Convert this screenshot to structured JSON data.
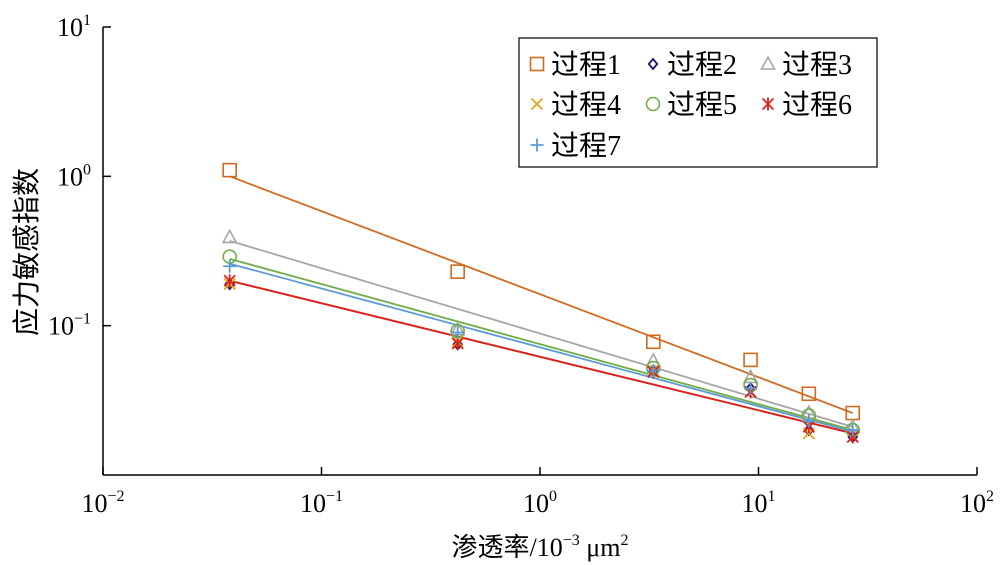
{
  "chart_data": {
    "type": "scatter",
    "xlabel": "渗透率/10",
    "xlabel_exp": "−3",
    "xlabel_unit": " μm",
    "xlabel_unit_exp": "2",
    "ylabel": "应力敏感指数",
    "x_scale": "log",
    "y_scale": "log",
    "xlim": [
      0.01,
      100
    ],
    "ylim": [
      0.01,
      10
    ],
    "x_ticks": [
      {
        "base": "10",
        "exp": "−2",
        "value": 0.01
      },
      {
        "base": "10",
        "exp": "−1",
        "value": 0.1
      },
      {
        "base": "10",
        "exp": "0",
        "value": 1
      },
      {
        "base": "10",
        "exp": "1",
        "value": 10
      },
      {
        "base": "10",
        "exp": "2",
        "value": 100
      }
    ],
    "y_ticks": [
      {
        "base": "10",
        "exp": "−1",
        "value": 0.1
      },
      {
        "base": "10",
        "exp": "0",
        "value": 1
      },
      {
        "base": "10",
        "exp": "1",
        "value": 10
      }
    ],
    "grid": false,
    "legend_position": "top-right",
    "x": [
      0.038,
      0.42,
      3.3,
      9.2,
      17,
      27
    ],
    "series": [
      {
        "name": "过程1",
        "marker": "square",
        "color": "#D2691E",
        "values": [
          1.1,
          0.23,
          0.078,
          0.059,
          0.035,
          0.026
        ],
        "fit": [
          1.0,
          0.026
        ]
      },
      {
        "name": "过程2",
        "marker": "diamond",
        "color": "#1B1464",
        "values": [
          0.19,
          0.075,
          0.05,
          0.038,
          0.02,
          0.018
        ],
        "fit": [
          0.2,
          0.019
        ]
      },
      {
        "name": "过程3",
        "marker": "triangle",
        "color": "#A6A6A6",
        "values": [
          0.39,
          0.094,
          0.058,
          0.045,
          0.026,
          0.021
        ],
        "fit": [
          0.37,
          0.021
        ]
      },
      {
        "name": "过程4",
        "marker": "x",
        "color": "#E6A817",
        "values": [
          0.19,
          0.078,
          0.05,
          0.036,
          0.019,
          0.018
        ],
        "fit": [
          0.2,
          0.019
        ]
      },
      {
        "name": "过程5",
        "marker": "circle",
        "color": "#70AD47",
        "values": [
          0.29,
          0.092,
          0.052,
          0.04,
          0.025,
          0.02
        ],
        "fit": [
          0.28,
          0.02
        ]
      },
      {
        "name": "过程6",
        "marker": "asterisk",
        "color": "#E02020",
        "values": [
          0.2,
          0.076,
          0.049,
          0.036,
          0.021,
          0.018
        ],
        "fit": [
          0.2,
          0.019
        ]
      },
      {
        "name": "过程7",
        "marker": "plus",
        "color": "#5B9BD5",
        "values": [
          0.25,
          0.09,
          0.05,
          0.038,
          0.023,
          0.02
        ],
        "fit": [
          0.26,
          0.0195
        ]
      }
    ]
  }
}
